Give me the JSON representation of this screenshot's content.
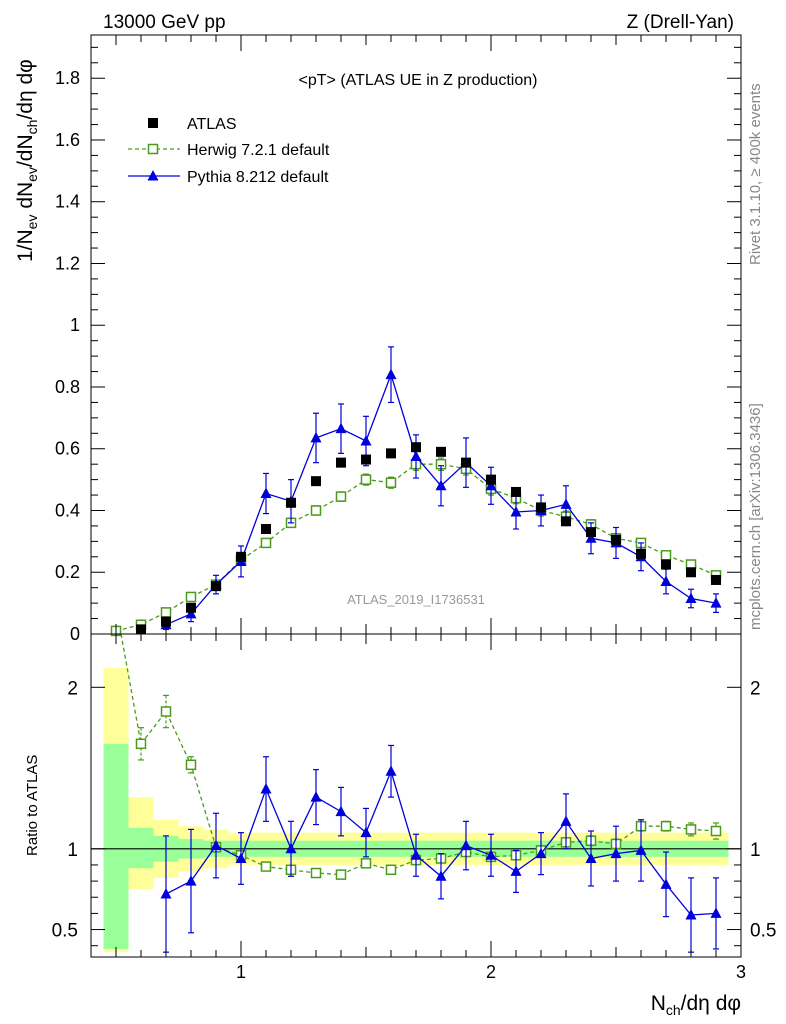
{
  "header": {
    "energy_label": "13000 GeV pp",
    "process_label": "Z (Drell-Yan)",
    "rivet_label": "Rivet 3.1.10, ≥ 400k events",
    "mcplots_label": "mcplots.cern.ch [arXiv:1306.3436]",
    "analysis_id": "ATLAS_2019_I1736531"
  },
  "chart_data": [
    {
      "type": "scatter",
      "panel": "main",
      "title": "<pT> (ATLAS UE in Z production)",
      "ylabel": "1/N_ev dN_ev/dN_ch/dη dφ",
      "xlim": [
        0.4,
        3.0
      ],
      "ylim": [
        0,
        1.94
      ],
      "xticks": [
        1,
        2,
        3
      ],
      "yticks": [
        0,
        0.2,
        0.4,
        0.6,
        0.8,
        1,
        1.2,
        1.4,
        1.6,
        1.8
      ],
      "ytick_labels": [
        "0",
        "0.2",
        "0.4",
        "0.6",
        "0.8",
        "1",
        "1.2",
        "1.4",
        "1.6",
        "1.8"
      ],
      "x": [
        0.5,
        0.6,
        0.7,
        0.8,
        0.9,
        1.0,
        1.1,
        1.2,
        1.3,
        1.4,
        1.5,
        1.6,
        1.7,
        1.8,
        1.9,
        2.0,
        2.1,
        2.2,
        2.3,
        2.4,
        2.5,
        2.6,
        2.7,
        2.8,
        2.9
      ],
      "legend": [
        "ATLAS",
        "Herwig 7.2.1 default",
        "Pythia 8.212 default"
      ],
      "series": [
        {
          "name": "ATLAS",
          "style": "square",
          "color": "#000000",
          "values": [
            null,
            0.015,
            0.04,
            0.085,
            0.155,
            0.25,
            0.34,
            0.425,
            0.495,
            0.555,
            0.565,
            0.585,
            0.605,
            0.59,
            0.555,
            0.5,
            0.46,
            0.41,
            0.365,
            0.33,
            0.305,
            0.26,
            0.225,
            0.2,
            0.175
          ]
        },
        {
          "name": "Herwig 7.2.1 default",
          "style": "open-square-dashed",
          "color": "#4b9b1b",
          "values": [
            0.01,
            0.03,
            0.07,
            0.12,
            0.16,
            0.24,
            0.295,
            0.36,
            0.4,
            0.445,
            0.5,
            0.49,
            0.55,
            0.55,
            0.535,
            0.47,
            0.44,
            0.4,
            0.38,
            0.355,
            0.31,
            0.295,
            0.255,
            0.225,
            0.19
          ],
          "errors": [
            0.005,
            0.008,
            0.01,
            0.01,
            0.01,
            0.012,
            0.012,
            0.015,
            0.015,
            0.015,
            0.018,
            0.018,
            0.02,
            0.02,
            0.02,
            0.02,
            0.018,
            0.018,
            0.018,
            0.015,
            0.015,
            0.012,
            0.012,
            0.01,
            0.01
          ]
        },
        {
          "name": "Pythia 8.212 default",
          "style": "triangle-solid",
          "color": "#0000dd",
          "values": [
            null,
            null,
            0.03,
            0.065,
            0.16,
            0.235,
            0.455,
            0.43,
            0.635,
            0.665,
            0.625,
            0.84,
            0.575,
            0.48,
            0.555,
            0.48,
            0.395,
            0.4,
            0.42,
            0.31,
            0.295,
            0.25,
            0.17,
            0.115,
            0.1
          ],
          "errors": [
            0,
            0,
            0.015,
            0.025,
            0.03,
            0.05,
            0.065,
            0.07,
            0.08,
            0.08,
            0.08,
            0.09,
            0.07,
            0.065,
            0.08,
            0.06,
            0.055,
            0.05,
            0.06,
            0.05,
            0.05,
            0.045,
            0.04,
            0.03,
            0.03
          ]
        }
      ]
    },
    {
      "type": "scatter",
      "panel": "ratio",
      "ylabel": "Ratio to ATLAS",
      "xlabel": "N_ch/dη dφ",
      "xlim": [
        0.4,
        3.0
      ],
      "ylim": [
        0.33,
        2.33
      ],
      "xticks": [
        1,
        2,
        3
      ],
      "xtick_labels": [
        "1",
        "2",
        "3"
      ],
      "yticks": [
        0.5,
        1,
        2
      ],
      "ytick_labels": [
        "0.5",
        "1",
        "2"
      ],
      "x": [
        0.5,
        0.6,
        0.7,
        0.8,
        0.9,
        1.0,
        1.1,
        1.2,
        1.3,
        1.4,
        1.5,
        1.6,
        1.7,
        1.8,
        1.9,
        2.0,
        2.1,
        2.2,
        2.3,
        2.4,
        2.5,
        2.6,
        2.7,
        2.8,
        2.9
      ],
      "bands": {
        "yellow_color": "#ffff99",
        "green_color": "#99ff99",
        "yellow_lo": [
          0.36,
          0.75,
          0.82,
          0.86,
          0.88,
          0.9,
          0.9,
          0.9,
          0.9,
          0.9,
          0.9,
          0.9,
          0.9,
          0.9,
          0.9,
          0.9,
          0.9,
          0.9,
          0.9,
          0.9,
          0.9,
          0.9,
          0.9,
          0.9,
          0.9
        ],
        "yellow_hi": [
          2.12,
          1.32,
          1.18,
          1.14,
          1.12,
          1.1,
          1.1,
          1.1,
          1.1,
          1.1,
          1.1,
          1.1,
          1.1,
          1.1,
          1.1,
          1.1,
          1.1,
          1.1,
          1.1,
          1.1,
          1.1,
          1.1,
          1.1,
          1.1,
          1.1
        ],
        "green_lo": [
          0.38,
          0.88,
          0.92,
          0.94,
          0.95,
          0.95,
          0.95,
          0.95,
          0.95,
          0.95,
          0.95,
          0.95,
          0.95,
          0.95,
          0.95,
          0.95,
          0.95,
          0.95,
          0.95,
          0.95,
          0.95,
          0.95,
          0.95,
          0.95,
          0.95
        ],
        "green_hi": [
          1.65,
          1.13,
          1.08,
          1.06,
          1.05,
          1.05,
          1.05,
          1.05,
          1.05,
          1.05,
          1.05,
          1.05,
          1.05,
          1.05,
          1.05,
          1.05,
          1.05,
          1.05,
          1.05,
          1.05,
          1.05,
          1.05,
          1.05,
          1.05,
          1.05
        ]
      },
      "series": [
        {
          "name": "Herwig 7.2.1 default",
          "style": "open-square-dashed",
          "color": "#4b9b1b",
          "entry_line": [
            [
              0.5,
              2.9
            ],
            [
              0.52,
              2.33
            ]
          ],
          "values": [
            null,
            1.65,
            1.85,
            1.52,
            1.01,
            0.96,
            0.89,
            0.87,
            0.85,
            0.84,
            0.91,
            0.87,
            0.93,
            0.94,
            0.98,
            0.95,
            0.96,
            0.99,
            1.04,
            1.05,
            1.03,
            1.14,
            1.14,
            1.12,
            1.11
          ],
          "errors": [
            0,
            0.1,
            0.1,
            0.05,
            0.03,
            0.02,
            0.02,
            0.02,
            0.02,
            0.02,
            0.02,
            0.02,
            0.02,
            0.02,
            0.02,
            0.02,
            0.02,
            0.02,
            0.02,
            0.03,
            0.03,
            0.03,
            0.03,
            0.04,
            0.05
          ]
        },
        {
          "name": "Pythia 8.212 default",
          "style": "triangle-solid",
          "color": "#0000dd",
          "values": [
            null,
            null,
            0.72,
            0.8,
            1.02,
            0.94,
            1.37,
            1.0,
            1.32,
            1.23,
            1.1,
            1.48,
            0.96,
            0.83,
            1.02,
            0.96,
            0.86,
            0.97,
            1.17,
            0.94,
            0.97,
            0.99,
            0.78,
            0.59,
            0.6
          ],
          "errors": [
            0,
            0,
            0.36,
            0.32,
            0.2,
            0.16,
            0.2,
            0.17,
            0.17,
            0.15,
            0.15,
            0.16,
            0.13,
            0.14,
            0.15,
            0.13,
            0.13,
            0.13,
            0.17,
            0.17,
            0.17,
            0.19,
            0.2,
            0.23,
            0.22
          ]
        }
      ]
    }
  ]
}
